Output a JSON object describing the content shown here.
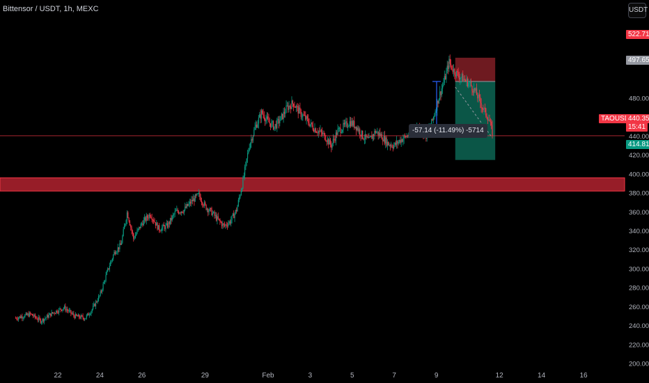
{
  "header": {
    "title": "Bittensor / USDT, 1h, MEXC",
    "currency_button": "USDT"
  },
  "price_tags": {
    "stop": "522.71",
    "entry": "497.65",
    "current": "440.35",
    "countdown": "15:41",
    "target": "414.81",
    "symbol": "TAOUSDT"
  },
  "measure_label": "-57.14 (-11.49%) -5714",
  "colors": {
    "background": "#000000",
    "up": "#089981",
    "down": "#f23645",
    "axis_text": "#b2b5be",
    "measure_arrow": "#2962ff",
    "zone": "#b2222f"
  },
  "chart_data": {
    "type": "candlestick",
    "xlabel": "",
    "ylabel": "",
    "x_ticks": [
      "22",
      "24",
      "26",
      "29",
      "Feb",
      "3",
      "5",
      "7",
      "9",
      "12",
      "14",
      "16"
    ],
    "y_ticks": [
      200,
      220,
      240,
      260,
      280,
      300,
      320,
      340,
      360,
      380,
      400,
      420,
      440,
      460,
      480
    ],
    "ylim": [
      197,
      550
    ],
    "price_path": [
      [
        20.0,
        248
      ],
      [
        20.7,
        252
      ],
      [
        21.2,
        245
      ],
      [
        21.8,
        254
      ],
      [
        22.3,
        259
      ],
      [
        22.8,
        250
      ],
      [
        23.3,
        248
      ],
      [
        23.6,
        256
      ],
      [
        24.0,
        272
      ],
      [
        24.4,
        300
      ],
      [
        24.7,
        318
      ],
      [
        25.0,
        325
      ],
      [
        25.3,
        360
      ],
      [
        25.6,
        332
      ],
      [
        26.0,
        348
      ],
      [
        26.4,
        358
      ],
      [
        26.8,
        342
      ],
      [
        27.2,
        345
      ],
      [
        27.6,
        360
      ],
      [
        28.0,
        362
      ],
      [
        28.4,
        372
      ],
      [
        28.7,
        378
      ],
      [
        29.0,
        366
      ],
      [
        29.3,
        360
      ],
      [
        29.6,
        352
      ],
      [
        29.9,
        345
      ],
      [
        30.2,
        350
      ],
      [
        30.5,
        362
      ],
      [
        30.8,
        392
      ],
      [
        31.1,
        430
      ],
      [
        31.4,
        450
      ],
      [
        31.7,
        465
      ],
      [
        32.0,
        455
      ],
      [
        32.3,
        450
      ],
      [
        32.6,
        458
      ],
      [
        32.9,
        470
      ],
      [
        33.2,
        475
      ],
      [
        33.5,
        465
      ],
      [
        33.8,
        458
      ],
      [
        34.1,
        450
      ],
      [
        34.4,
        445
      ],
      [
        34.7,
        440
      ],
      [
        35.0,
        430
      ],
      [
        35.3,
        445
      ],
      [
        35.6,
        450
      ],
      [
        35.9,
        455
      ],
      [
        36.2,
        450
      ],
      [
        36.5,
        440
      ],
      [
        36.8,
        435
      ],
      [
        37.1,
        445
      ],
      [
        37.4,
        440
      ],
      [
        37.7,
        432
      ],
      [
        38.0,
        430
      ],
      [
        38.3,
        436
      ],
      [
        38.6,
        440
      ],
      [
        38.9,
        446
      ],
      [
        39.2,
        450
      ],
      [
        39.5,
        440
      ],
      [
        39.8,
        455
      ],
      [
        40.1,
        480
      ],
      [
        40.4,
        500
      ],
      [
        40.6,
        518
      ],
      [
        40.8,
        510
      ],
      [
        41.0,
        505
      ],
      [
        41.3,
        500
      ],
      [
        41.6,
        495
      ],
      [
        41.9,
        485
      ],
      [
        42.2,
        470
      ],
      [
        42.5,
        458
      ],
      [
        42.7,
        440
      ]
    ],
    "horizontal_line": 440.35,
    "resistance_zone": [
      382,
      396
    ],
    "position": {
      "side": "short",
      "entry": 497.65,
      "stop": 522.71,
      "target": 414.81,
      "x_range": [
        40.9,
        42.8
      ]
    },
    "measure": {
      "from": 497.65,
      "to": 440.51,
      "change": -57.14,
      "percent": -11.49
    }
  }
}
